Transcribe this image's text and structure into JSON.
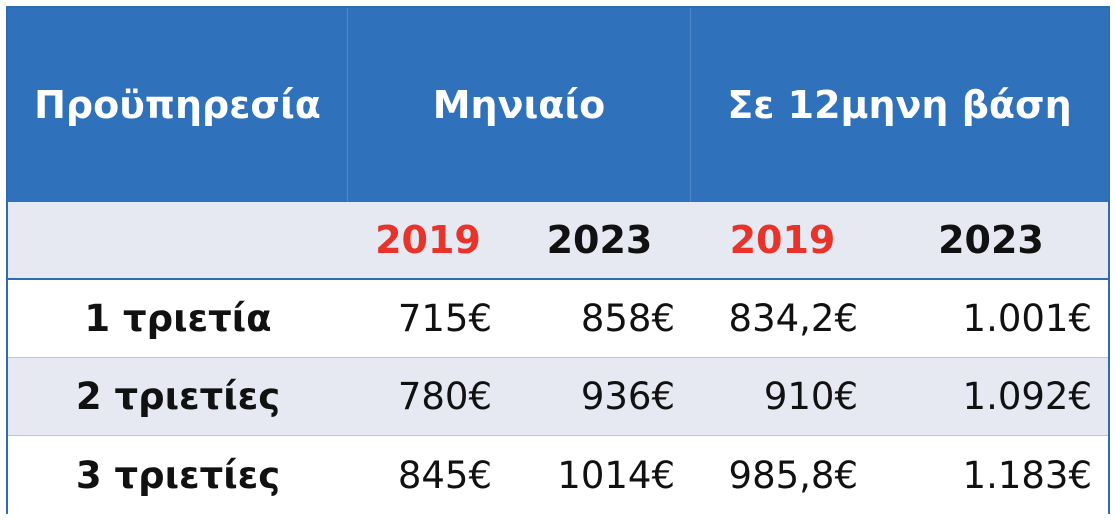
{
  "chart_data": {
    "type": "table",
    "header": {
      "col_service": "Προϋπηρεσία",
      "col_monthly": "Μηνιαίο",
      "col_annual": "Σε 12μηνη βάση"
    },
    "years": [
      "2019",
      "2023",
      "2019",
      "2023"
    ],
    "rows": [
      {
        "label": "1 τριετία",
        "values": [
          "715€",
          "858€",
          "834,2€",
          "1.001€"
        ]
      },
      {
        "label": "2 τριετίες",
        "values": [
          "780€",
          "936€",
          "910€",
          "1.092€"
        ]
      },
      {
        "label": "3 τριετίες",
        "values": [
          "845€",
          "1014€",
          "985,8€",
          "1.183€"
        ]
      }
    ]
  },
  "colors": {
    "header_bg": "#2f71ba",
    "year_2019": "#e8332a",
    "year_2023": "#111111",
    "row_alt_bg": "#e7e9f2"
  }
}
